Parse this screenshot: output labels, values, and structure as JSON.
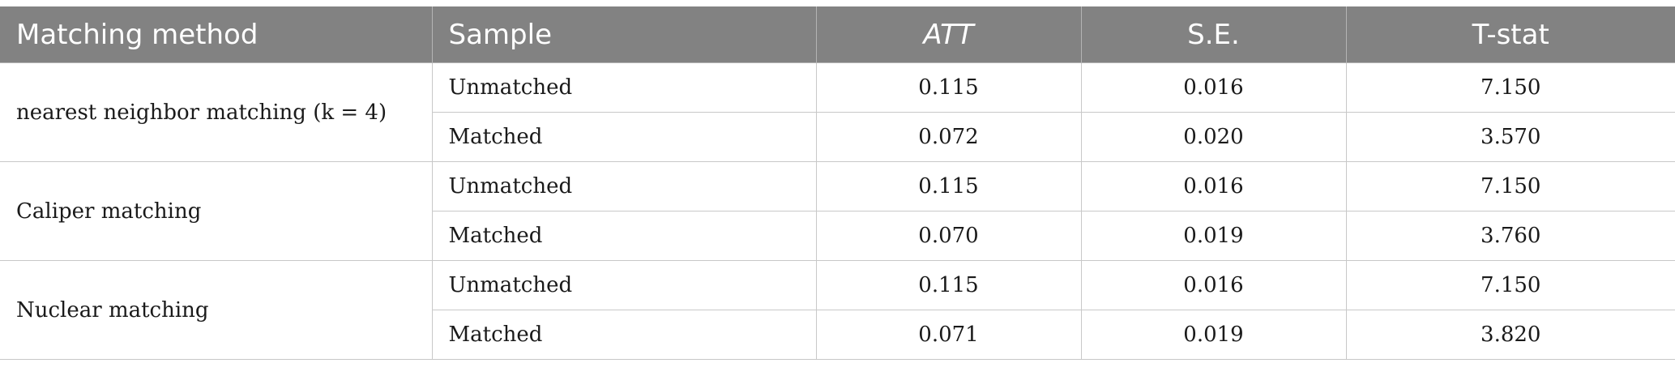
{
  "table": {
    "headers": {
      "method": "Matching method",
      "sample": "Sample",
      "att": "ATT",
      "se": "S.E.",
      "tstat": "T-stat"
    },
    "groups": [
      {
        "method": "nearest neighbor matching (k = 4)",
        "rows": [
          {
            "sample": "Unmatched",
            "att": "0.115",
            "se": "0.016",
            "tstat": "7.150"
          },
          {
            "sample": "Matched",
            "att": "0.072",
            "se": "0.020",
            "tstat": "3.570"
          }
        ]
      },
      {
        "method": "Caliper matching",
        "rows": [
          {
            "sample": "Unmatched",
            "att": "0.115",
            "se": "0.016",
            "tstat": "7.150"
          },
          {
            "sample": "Matched",
            "att": "0.070",
            "se": "0.019",
            "tstat": "3.760"
          }
        ]
      },
      {
        "method": "Nuclear matching",
        "rows": [
          {
            "sample": "Unmatched",
            "att": "0.115",
            "se": "0.016",
            "tstat": "7.150"
          },
          {
            "sample": "Matched",
            "att": "0.071",
            "se": "0.019",
            "tstat": "3.820"
          }
        ]
      }
    ]
  }
}
